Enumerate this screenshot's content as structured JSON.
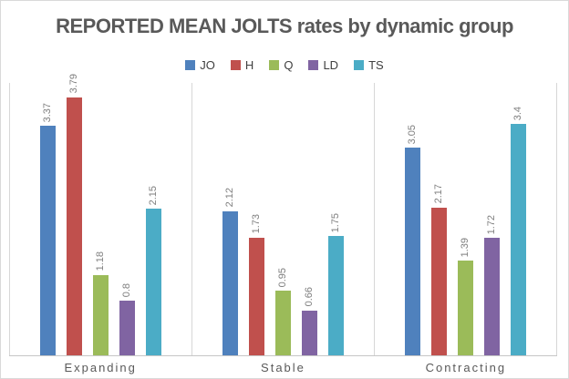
{
  "chart_data": {
    "type": "bar",
    "title": "REPORTED MEAN JOLTS rates by dynamic group",
    "categories": [
      "Expanding",
      "Stable",
      "Contracting"
    ],
    "series": [
      {
        "name": "JO",
        "color": "#4F81BD",
        "values": [
          3.37,
          2.12,
          3.05
        ]
      },
      {
        "name": "H",
        "color": "#C0504D",
        "values": [
          3.79,
          1.73,
          2.17
        ]
      },
      {
        "name": "Q",
        "color": "#9BBB59",
        "values": [
          1.18,
          0.95,
          1.39
        ]
      },
      {
        "name": "LD",
        "color": "#8064A2",
        "values": [
          0.8,
          0.66,
          1.72
        ]
      },
      {
        "name": "TS",
        "color": "#4BACC6",
        "values": [
          2.15,
          1.75,
          3.4
        ]
      }
    ],
    "ylim": [
      0,
      4
    ],
    "grid": false,
    "legend_position": "top",
    "value_labels_shown": true,
    "value_label_rotation": 90,
    "xlabel": "",
    "ylabel": ""
  },
  "colors": {
    "title_text": "#595959",
    "value_label_text": "#7f7f7f",
    "category_label_text": "#595959",
    "legend_text": "#404040",
    "panel_line": "#d7d7d7",
    "baseline": "#c6c6c6",
    "frame_border": "#d9d9d9",
    "background": "#ffffff"
  }
}
